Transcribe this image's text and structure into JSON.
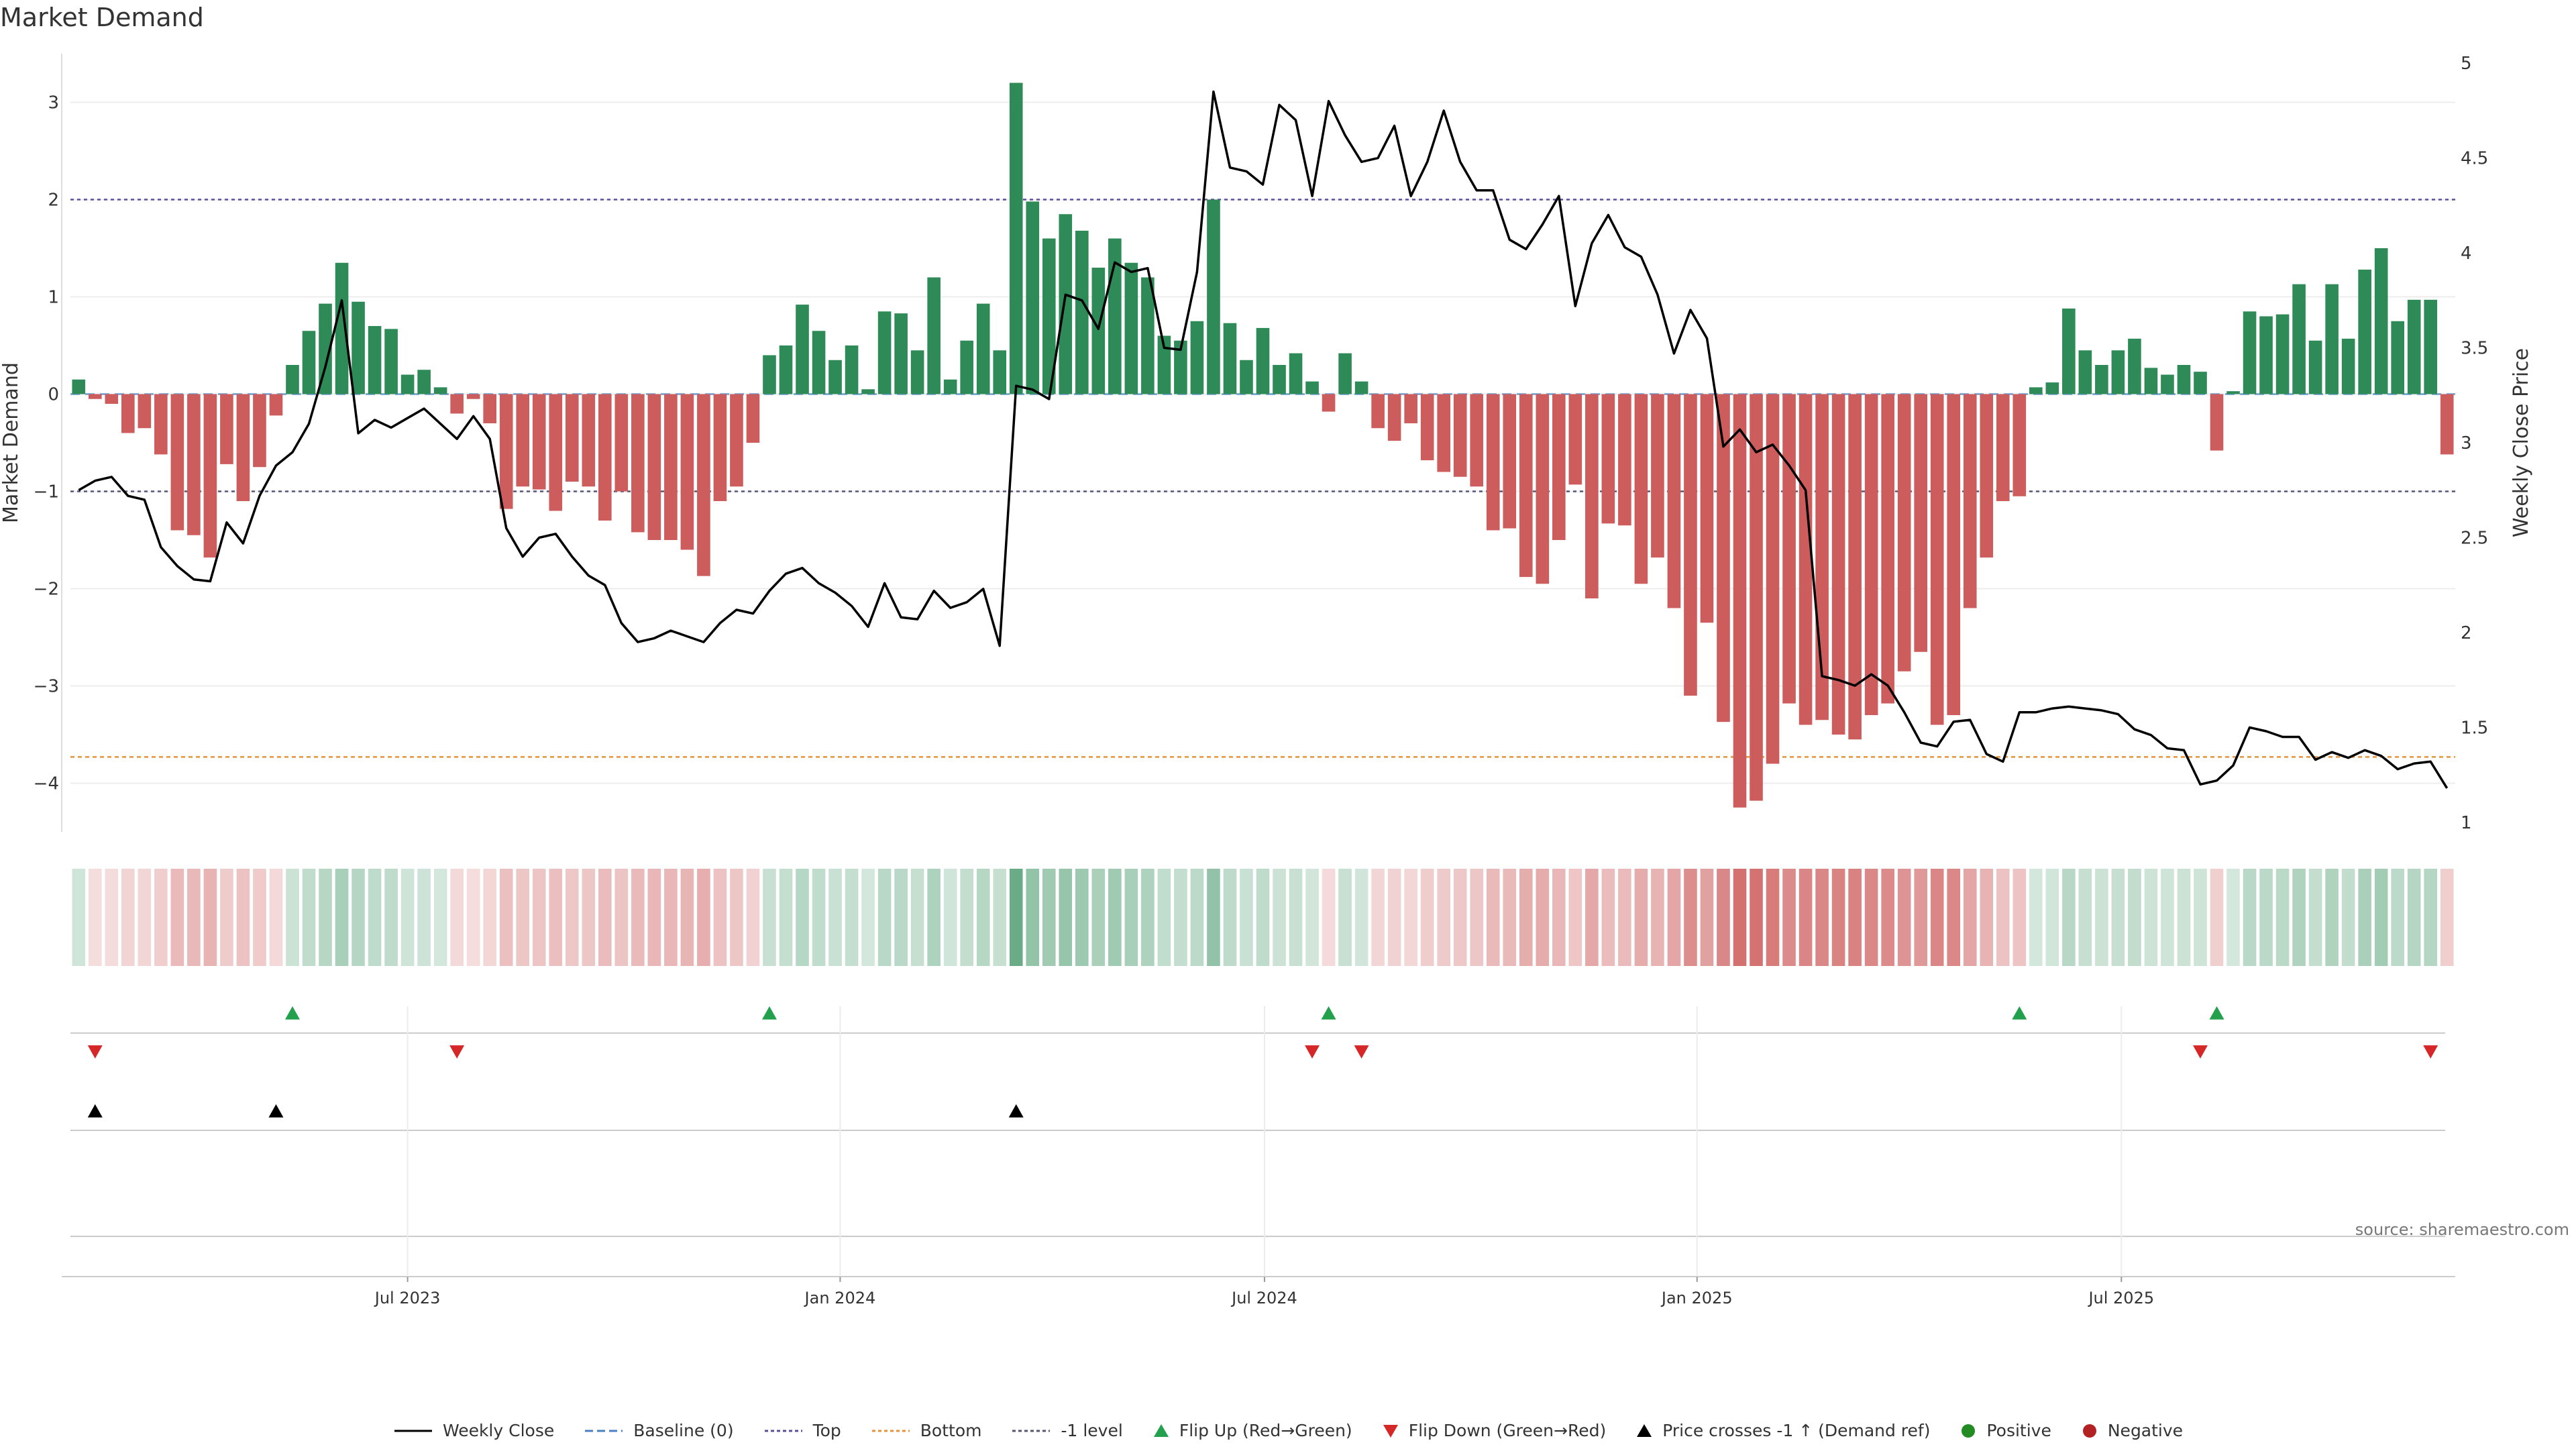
{
  "title": "Market Demand",
  "source_note": "source: sharemaestro.com",
  "colors": {
    "positive": "#2e8b57",
    "negative": "#cd5c5c",
    "line": "#000000",
    "top_line": "#5b4f99",
    "bottom_line": "#e8923a",
    "minus1_line": "#555577",
    "flip_up": "#22a04b",
    "flip_down": "#d62728",
    "cross": "#000000",
    "grid": "#ececec"
  },
  "legend": [
    {
      "label": "Weekly Close",
      "icon": "solid-line",
      "color": "#000000"
    },
    {
      "label": "Baseline (0)",
      "icon": "dashed-line",
      "color": "#4a7fc1"
    },
    {
      "label": "Top",
      "icon": "dotted-line",
      "color": "#5b4f99"
    },
    {
      "label": "Bottom",
      "icon": "dotted-line",
      "color": "#e8923a"
    },
    {
      "label": "-1 level",
      "icon": "dotted-line",
      "color": "#555577"
    },
    {
      "label": "Flip Up (Red→Green)",
      "icon": "triangle-up",
      "color": "#22a04b"
    },
    {
      "label": "Flip Down (Green→Red)",
      "icon": "triangle-down",
      "color": "#d62728"
    },
    {
      "label": "Price crosses -1 ↑ (Demand ref)",
      "icon": "triangle-up",
      "color": "#000000"
    },
    {
      "label": "Positive",
      "icon": "circle",
      "color": "#228b22"
    },
    {
      "label": "Negative",
      "icon": "circle",
      "color": "#b22222"
    }
  ],
  "chart_data": {
    "type": "bar",
    "ylabel": "Market Demand",
    "y2label": "Weekly Close Price",
    "ylim": [
      -4.5,
      3.5
    ],
    "y2lim": [
      0.95,
      5.05
    ],
    "yticks": [
      3,
      2,
      1,
      0,
      -1,
      -2,
      -3,
      -4
    ],
    "yticklabels": [
      "3",
      "2",
      "1",
      "0",
      "−1",
      "−2",
      "−3",
      "−4"
    ],
    "y2ticks": [
      5,
      4.5,
      4,
      3.5,
      3,
      2.5,
      2,
      1.5,
      1
    ],
    "y2ticklabels": [
      "5",
      "4.5",
      "4",
      "3.5",
      "3",
      "2.5",
      "2",
      "1.5",
      "1"
    ],
    "xticks": [
      {
        "label": "Jul 2023",
        "week": 20.5
      },
      {
        "label": "Jan 2024",
        "week": 46.8
      },
      {
        "label": "Jul 2024",
        "week": 72.6
      },
      {
        "label": "Jan 2025",
        "week": 98.9
      },
      {
        "label": "Jul 2025",
        "week": 124.7
      }
    ],
    "levels": {
      "top": 2,
      "bottom": -3.73,
      "minus_one": -1,
      "baseline": 0
    },
    "demand": [
      0.15,
      -0.05,
      -0.1,
      -0.4,
      -0.35,
      -0.62,
      -1.4,
      -1.45,
      -1.68,
      -0.72,
      -1.1,
      -0.75,
      -0.22,
      0.3,
      0.65,
      0.93,
      1.35,
      0.95,
      0.7,
      0.67,
      0.2,
      0.25,
      0.07,
      -0.2,
      -0.05,
      -0.3,
      -1.18,
      -0.95,
      -0.98,
      -1.2,
      -0.9,
      -0.95,
      -1.3,
      -1.0,
      -1.42,
      -1.5,
      -1.5,
      -1.6,
      -1.87,
      -1.1,
      -0.95,
      -0.5,
      0.4,
      0.5,
      0.92,
      0.65,
      0.35,
      0.5,
      0.05,
      0.85,
      0.83,
      0.45,
      1.2,
      0.15,
      0.55,
      0.93,
      0.45,
      3.2,
      1.98,
      1.6,
      1.85,
      1.68,
      1.3,
      1.6,
      1.35,
      1.2,
      0.6,
      0.55,
      0.75,
      2.0,
      0.73,
      0.35,
      0.68,
      0.3,
      0.42,
      0.13,
      -0.18,
      0.42,
      0.13,
      -0.35,
      -0.48,
      -0.3,
      -0.68,
      -0.8,
      -0.85,
      -0.95,
      -1.4,
      -1.38,
      -1.88,
      -1.95,
      -1.5,
      -0.93,
      -2.1,
      -1.33,
      -1.35,
      -1.95,
      -1.68,
      -2.2,
      -3.1,
      -2.35,
      -3.37,
      -4.25,
      -4.18,
      -3.8,
      -3.18,
      -3.4,
      -3.35,
      -3.5,
      -3.55,
      -3.3,
      -3.18,
      -2.85,
      -2.65,
      -3.4,
      -3.3,
      -2.2,
      -1.68,
      -1.1,
      -1.05,
      0.07,
      0.12,
      0.88,
      0.45,
      0.3,
      0.45,
      0.57,
      0.27,
      0.2,
      0.3,
      0.23,
      -0.58,
      0.03,
      0.85,
      0.8,
      0.82,
      1.13,
      0.55,
      1.13,
      0.57,
      1.28,
      1.5,
      0.75,
      0.97,
      0.97,
      -0.62
    ],
    "weekly_close": [
      2.75,
      2.8,
      2.82,
      2.72,
      2.7,
      2.45,
      2.35,
      2.28,
      2.27,
      2.58,
      2.47,
      2.72,
      2.88,
      2.95,
      3.1,
      3.4,
      3.75,
      3.05,
      3.12,
      3.08,
      3.13,
      3.18,
      3.1,
      3.02,
      3.14,
      3.02,
      2.55,
      2.4,
      2.5,
      2.52,
      2.4,
      2.3,
      2.25,
      2.05,
      1.95,
      1.97,
      2.01,
      1.98,
      1.95,
      2.05,
      2.12,
      2.1,
      2.22,
      2.31,
      2.34,
      2.26,
      2.21,
      2.14,
      2.03,
      2.26,
      2.08,
      2.07,
      2.22,
      2.13,
      2.16,
      2.23,
      1.93,
      3.3,
      3.28,
      3.23,
      3.78,
      3.75,
      3.6,
      3.95,
      3.9,
      3.92,
      3.5,
      3.49,
      3.9,
      4.85,
      4.45,
      4.43,
      4.36,
      4.78,
      4.7,
      4.3,
      4.8,
      4.62,
      4.48,
      4.5,
      4.67,
      4.3,
      4.48,
      4.75,
      4.48,
      4.33,
      4.33,
      4.07,
      4.02,
      4.15,
      4.3,
      3.72,
      4.05,
      4.2,
      4.03,
      3.98,
      3.78,
      3.47,
      3.7,
      3.55,
      2.98,
      3.07,
      2.95,
      2.99,
      2.88,
      2.75,
      1.77,
      1.75,
      1.72,
      1.78,
      1.72,
      1.58,
      1.42,
      1.4,
      1.53,
      1.54,
      1.36,
      1.32,
      1.58,
      1.58,
      1.6,
      1.61,
      1.6,
      1.59,
      1.57,
      1.49,
      1.46,
      1.39,
      1.38,
      1.2,
      1.22,
      1.3,
      1.5,
      1.48,
      1.45,
      1.45,
      1.33,
      1.37,
      1.34,
      1.38,
      1.35,
      1.28,
      1.31,
      1.32,
      1.18
    ],
    "flip_up_weeks": [
      13,
      42,
      76,
      118,
      130
    ],
    "flip_down_weeks": [
      1,
      23,
      75,
      78,
      129,
      143
    ],
    "price_cross_weeks": [
      1,
      12,
      57
    ]
  }
}
